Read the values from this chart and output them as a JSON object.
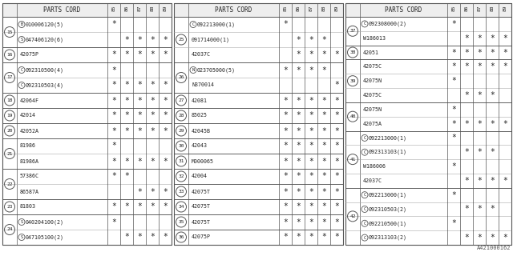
{
  "columns": [
    "85",
    "86",
    "87",
    "88",
    "89"
  ],
  "panels": [
    {
      "header": "PARTS CORD",
      "rows": [
        {
          "num": "15",
          "parts": [
            {
              "prefix": "B",
              "prefix_circle": true,
              "code": "010006120(5)",
              "stars": [
                1,
                0,
                0,
                0,
                0
              ]
            },
            {
              "prefix": "S",
              "prefix_circle": true,
              "code": "047406120(6)",
              "stars": [
                0,
                1,
                1,
                1,
                1
              ]
            }
          ]
        },
        {
          "num": "16",
          "parts": [
            {
              "prefix": "",
              "prefix_circle": false,
              "code": "42075P",
              "stars": [
                1,
                1,
                1,
                1,
                1
              ]
            }
          ]
        },
        {
          "num": "17",
          "parts": [
            {
              "prefix": "C",
              "prefix_circle": true,
              "code": "092310500(4)",
              "stars": [
                1,
                0,
                0,
                0,
                0
              ]
            },
            {
              "prefix": "C",
              "prefix_circle": true,
              "code": "092310503(4)",
              "stars": [
                1,
                1,
                1,
                1,
                1
              ]
            }
          ]
        },
        {
          "num": "18",
          "parts": [
            {
              "prefix": "",
              "prefix_circle": false,
              "code": "42064F",
              "stars": [
                1,
                1,
                1,
                1,
                1
              ]
            }
          ]
        },
        {
          "num": "19",
          "parts": [
            {
              "prefix": "",
              "prefix_circle": false,
              "code": "42014",
              "stars": [
                1,
                1,
                1,
                1,
                1
              ]
            }
          ]
        },
        {
          "num": "20",
          "parts": [
            {
              "prefix": "",
              "prefix_circle": false,
              "code": "42052A",
              "stars": [
                1,
                1,
                1,
                1,
                1
              ]
            }
          ]
        },
        {
          "num": "21",
          "parts": [
            {
              "prefix": "",
              "prefix_circle": false,
              "code": "81986",
              "stars": [
                1,
                0,
                0,
                0,
                0
              ]
            },
            {
              "prefix": "",
              "prefix_circle": false,
              "code": "81986A",
              "stars": [
                1,
                1,
                1,
                1,
                1
              ]
            }
          ]
        },
        {
          "num": "22",
          "parts": [
            {
              "prefix": "",
              "prefix_circle": false,
              "code": "57386C",
              "stars": [
                1,
                1,
                0,
                0,
                0
              ]
            },
            {
              "prefix": "",
              "prefix_circle": false,
              "code": "86587A",
              "stars": [
                0,
                0,
                1,
                1,
                1
              ]
            }
          ]
        },
        {
          "num": "23",
          "parts": [
            {
              "prefix": "",
              "prefix_circle": false,
              "code": "81803",
              "stars": [
                1,
                1,
                1,
                1,
                1
              ]
            }
          ]
        },
        {
          "num": "24",
          "parts": [
            {
              "prefix": "S",
              "prefix_circle": true,
              "code": "040204100(2)",
              "stars": [
                1,
                0,
                0,
                0,
                0
              ]
            },
            {
              "prefix": "S",
              "prefix_circle": true,
              "code": "047105100(2)",
              "stars": [
                0,
                1,
                1,
                1,
                1
              ]
            }
          ]
        }
      ]
    },
    {
      "header": "PARTS CORD",
      "rows": [
        {
          "num": "25",
          "parts": [
            {
              "prefix": "C",
              "prefix_circle": true,
              "code": "092213000(1)",
              "stars": [
                1,
                0,
                0,
                0,
                0
              ]
            },
            {
              "prefix": "",
              "prefix_circle": false,
              "code": "091714000(1)",
              "stars": [
                0,
                1,
                1,
                1,
                0
              ]
            },
            {
              "prefix": "",
              "prefix_circle": false,
              "code": "42037C",
              "stars": [
                0,
                1,
                1,
                1,
                1
              ]
            }
          ]
        },
        {
          "num": "26",
          "parts": [
            {
              "prefix": "N",
              "prefix_circle": true,
              "code": "023705000(5)",
              "stars": [
                1,
                1,
                1,
                1,
                0
              ]
            },
            {
              "prefix": "",
              "prefix_circle": false,
              "code": "N370014",
              "stars": [
                0,
                0,
                0,
                0,
                1
              ]
            }
          ]
        },
        {
          "num": "27",
          "parts": [
            {
              "prefix": "",
              "prefix_circle": false,
              "code": "42081",
              "stars": [
                1,
                1,
                1,
                1,
                1
              ]
            }
          ]
        },
        {
          "num": "28",
          "parts": [
            {
              "prefix": "",
              "prefix_circle": false,
              "code": "85025",
              "stars": [
                1,
                1,
                1,
                1,
                1
              ]
            }
          ]
        },
        {
          "num": "29",
          "parts": [
            {
              "prefix": "",
              "prefix_circle": false,
              "code": "42045B",
              "stars": [
                1,
                1,
                1,
                1,
                1
              ]
            }
          ]
        },
        {
          "num": "30",
          "parts": [
            {
              "prefix": "",
              "prefix_circle": false,
              "code": "42043",
              "stars": [
                1,
                1,
                1,
                1,
                1
              ]
            }
          ]
        },
        {
          "num": "31",
          "parts": [
            {
              "prefix": "",
              "prefix_circle": false,
              "code": "M000065",
              "stars": [
                1,
                1,
                1,
                1,
                1
              ]
            }
          ]
        },
        {
          "num": "32",
          "parts": [
            {
              "prefix": "",
              "prefix_circle": false,
              "code": "42004",
              "stars": [
                1,
                1,
                1,
                1,
                1
              ]
            }
          ]
        },
        {
          "num": "33",
          "parts": [
            {
              "prefix": "",
              "prefix_circle": false,
              "code": "42075T",
              "stars": [
                1,
                1,
                1,
                1,
                1
              ]
            }
          ]
        },
        {
          "num": "34",
          "parts": [
            {
              "prefix": "",
              "prefix_circle": false,
              "code": "42075T",
              "stars": [
                1,
                1,
                1,
                1,
                1
              ]
            }
          ]
        },
        {
          "num": "35",
          "parts": [
            {
              "prefix": "",
              "prefix_circle": false,
              "code": "42075T",
              "stars": [
                1,
                1,
                1,
                1,
                1
              ]
            }
          ]
        },
        {
          "num": "36",
          "parts": [
            {
              "prefix": "",
              "prefix_circle": false,
              "code": "42075P",
              "stars": [
                1,
                1,
                1,
                1,
                1
              ]
            }
          ]
        }
      ]
    },
    {
      "header": "PARTS CORD",
      "rows": [
        {
          "num": "37",
          "parts": [
            {
              "prefix": "C",
              "prefix_circle": true,
              "code": "092308000(2)",
              "stars": [
                1,
                0,
                0,
                0,
                0
              ]
            },
            {
              "prefix": "",
              "prefix_circle": false,
              "code": "W186013",
              "stars": [
                0,
                1,
                1,
                1,
                1
              ]
            }
          ]
        },
        {
          "num": "38",
          "parts": [
            {
              "prefix": "",
              "prefix_circle": false,
              "code": "42051",
              "stars": [
                1,
                1,
                1,
                1,
                1
              ]
            }
          ]
        },
        {
          "num": "39",
          "parts": [
            {
              "prefix": "",
              "prefix_circle": false,
              "code": "42075C",
              "stars": [
                1,
                1,
                1,
                1,
                1
              ]
            },
            {
              "prefix": "",
              "prefix_circle": false,
              "code": "42075N",
              "stars": [
                1,
                0,
                0,
                0,
                0
              ]
            },
            {
              "prefix": "",
              "prefix_circle": false,
              "code": "42075C",
              "stars": [
                0,
                1,
                1,
                1,
                0
              ]
            }
          ]
        },
        {
          "num": "40",
          "parts": [
            {
              "prefix": "",
              "prefix_circle": false,
              "code": "42075N",
              "stars": [
                1,
                0,
                0,
                0,
                0
              ]
            },
            {
              "prefix": "",
              "prefix_circle": false,
              "code": "42075A",
              "stars": [
                1,
                1,
                1,
                1,
                1
              ]
            }
          ]
        },
        {
          "num": "41",
          "parts": [
            {
              "prefix": "C",
              "prefix_circle": true,
              "code": "092213000(1)",
              "stars": [
                1,
                0,
                0,
                0,
                0
              ]
            },
            {
              "prefix": "C",
              "prefix_circle": true,
              "code": "092313103(1)",
              "stars": [
                0,
                1,
                1,
                1,
                0
              ]
            },
            {
              "prefix": "",
              "prefix_circle": false,
              "code": "W186006",
              "stars": [
                1,
                0,
                0,
                0,
                0
              ]
            },
            {
              "prefix": "",
              "prefix_circle": false,
              "code": "42037C",
              "stars": [
                0,
                1,
                1,
                1,
                1
              ]
            }
          ]
        },
        {
          "num": "42",
          "parts": [
            {
              "prefix": "C",
              "prefix_circle": true,
              "code": "092213000(1)",
              "stars": [
                1,
                0,
                0,
                0,
                0
              ]
            },
            {
              "prefix": "C",
              "prefix_circle": true,
              "code": "092310503(2)",
              "stars": [
                0,
                1,
                1,
                1,
                0
              ]
            },
            {
              "prefix": "C",
              "prefix_circle": true,
              "code": "092210500(1)",
              "stars": [
                1,
                0,
                0,
                0,
                0
              ]
            },
            {
              "prefix": "C",
              "prefix_circle": true,
              "code": "092313103(2)",
              "stars": [
                0,
                1,
                1,
                1,
                1
              ]
            }
          ]
        }
      ]
    }
  ],
  "footnote": "A421000162",
  "fig_width": 6.4,
  "fig_height": 3.2,
  "dpi": 100
}
